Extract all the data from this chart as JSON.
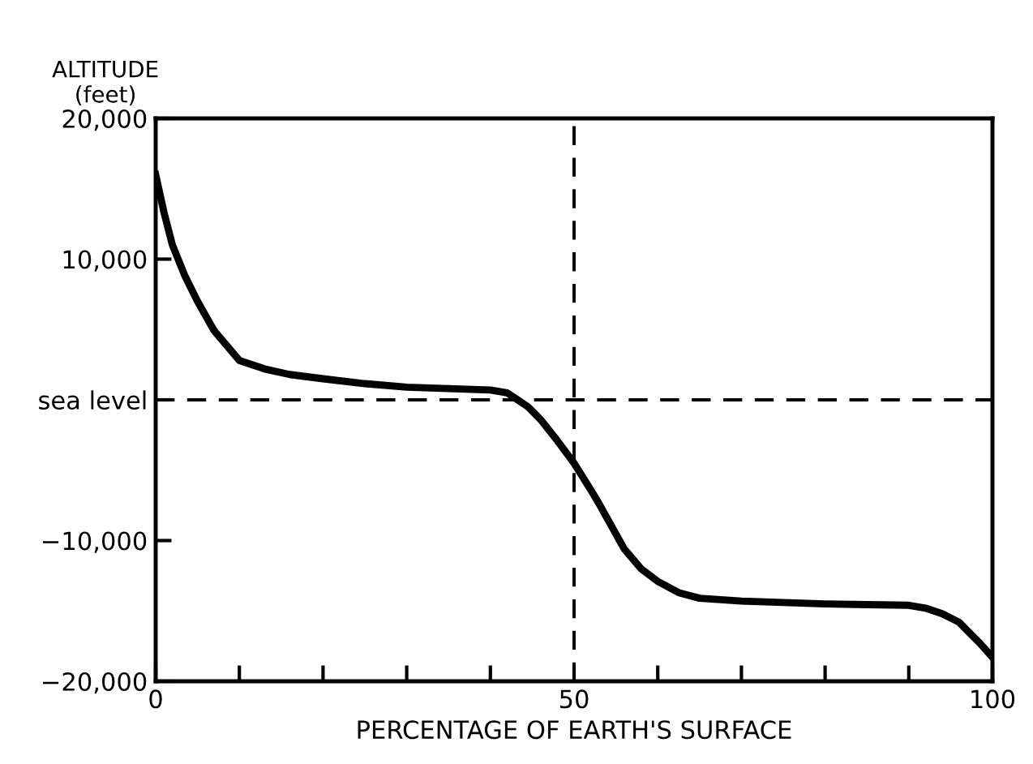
{
  "chart_data": {
    "type": "line",
    "xlabel": "PERCENTAGE OF EARTH'S SURFACE",
    "ylabel": "ALTITUDE\n(feet)",
    "x": [
      0,
      1,
      2,
      3.5,
      5,
      7,
      10,
      13,
      16,
      20,
      25,
      30,
      35,
      40,
      42,
      43,
      44.5,
      46,
      48,
      50,
      52,
      53,
      54.5,
      56,
      58,
      60,
      62.5,
      65,
      70,
      75,
      80,
      85,
      90,
      92,
      94,
      96,
      97,
      98.5,
      100
    ],
    "series": [
      {
        "color": "#000000",
        "values": [
          16000,
          13300,
          11000,
          8800,
          7000,
          4900,
          2800,
          2200,
          1800,
          1500,
          1150,
          900,
          800,
          700,
          500,
          100,
          -500,
          -1400,
          -2900,
          -4500,
          -6400,
          -7400,
          -9000,
          -10600,
          -12000,
          -12900,
          -13700,
          -14100,
          -14300,
          -14400,
          -14500,
          -14550,
          -14600,
          -14800,
          -15200,
          -15800,
          -16400,
          -17300,
          -18300
        ]
      }
    ],
    "xlim": [
      0,
      100
    ],
    "ylim": [
      -20000,
      20000
    ],
    "xticks": [
      0,
      {
        "value": 10,
        "label": null
      },
      {
        "value": 20,
        "label": null
      },
      {
        "value": 30,
        "label": null
      },
      {
        "value": 40,
        "label": null
      },
      50,
      {
        "value": 60,
        "label": null
      },
      {
        "value": 70,
        "label": null
      },
      {
        "value": 80,
        "label": null
      },
      {
        "value": 90,
        "label": null
      },
      100
    ],
    "yticks": [
      {
        "value": -20000,
        "label": "−20,000"
      },
      {
        "value": -10000,
        "label": "−10,000"
      },
      {
        "value": 0,
        "label": "sea level"
      },
      {
        "value": 10000,
        "label": "10,000"
      },
      {
        "value": 20000,
        "label": "20,000"
      }
    ],
    "ref_lines": [
      {
        "axis": "y",
        "value": 0,
        "color": "#000000",
        "line_style": "dashed"
      },
      {
        "axis": "x",
        "value": 50,
        "color": "#000000",
        "line_style": "dashed"
      }
    ],
    "line_style": "solid",
    "marker": "none",
    "grid": false,
    "legend": false
  }
}
